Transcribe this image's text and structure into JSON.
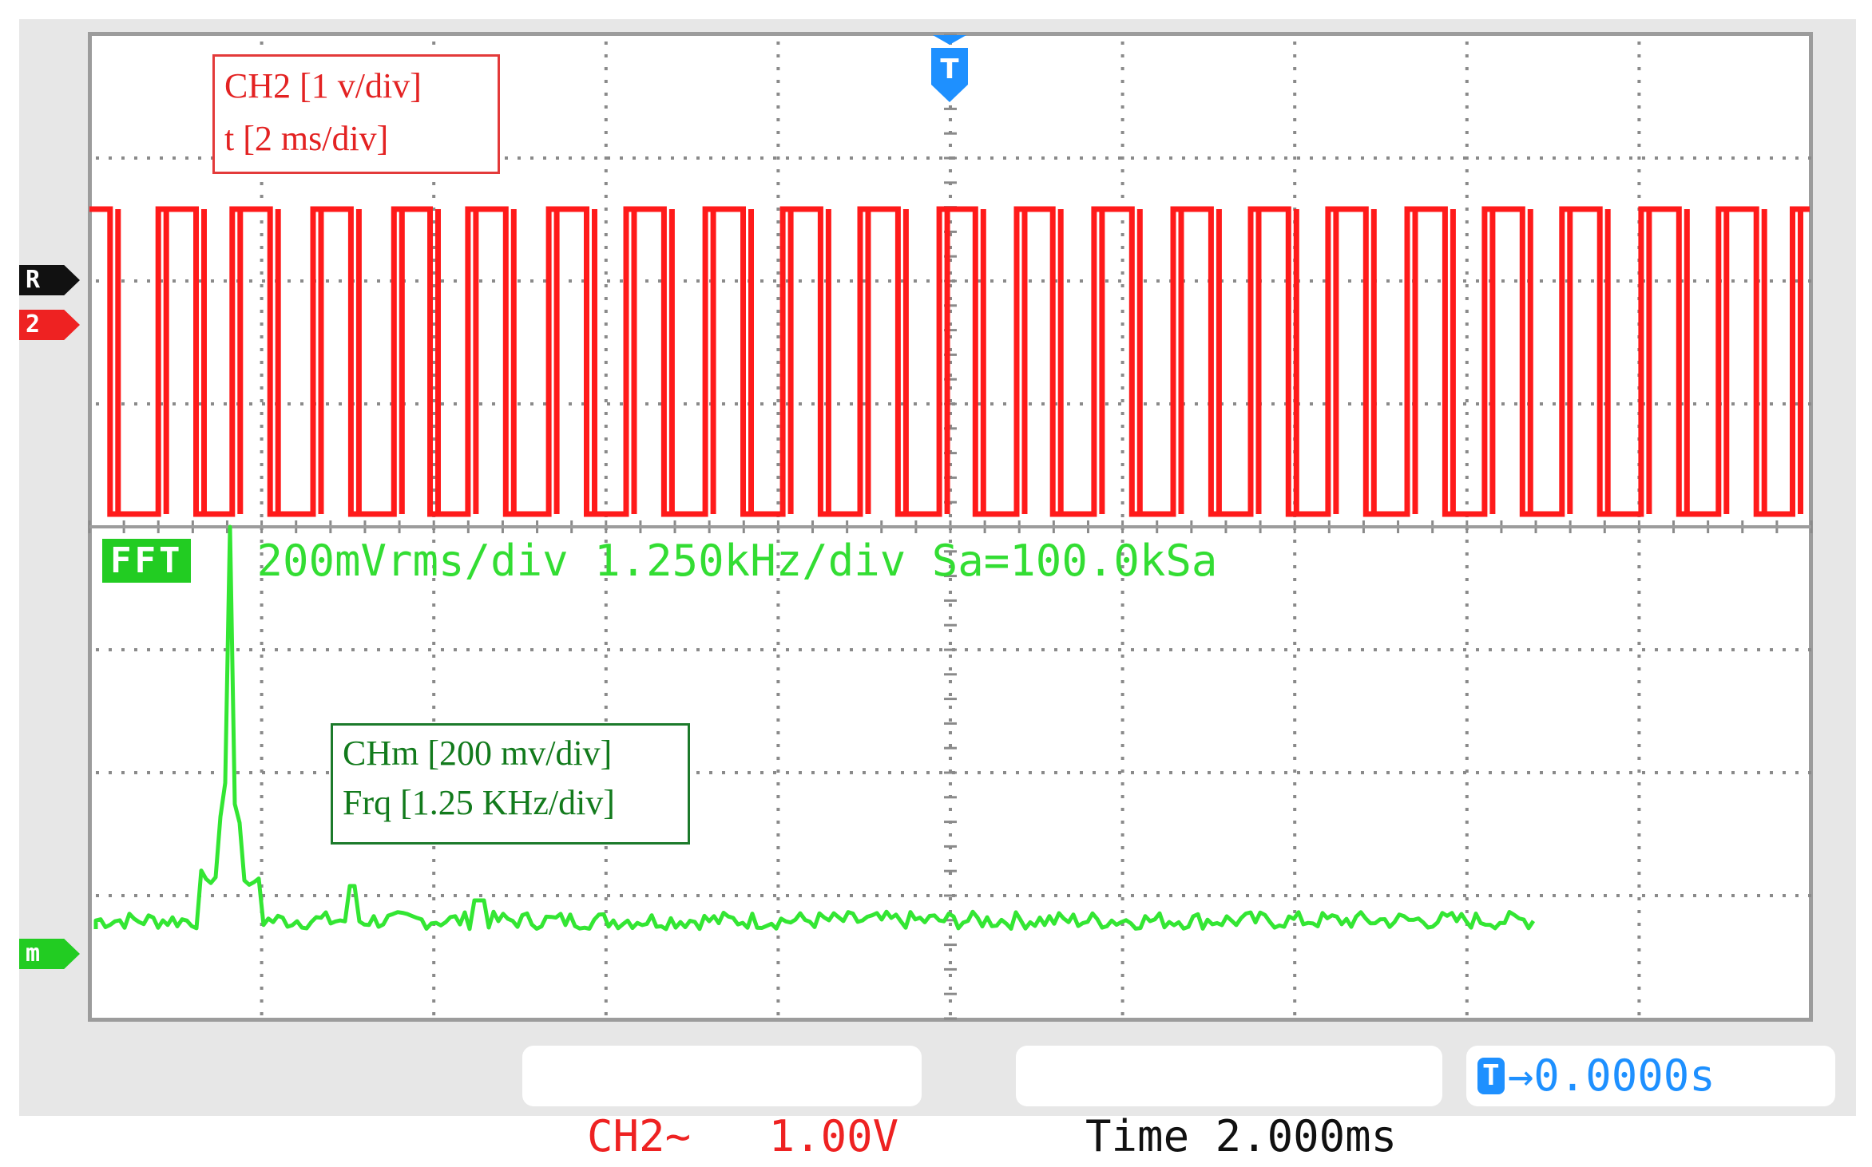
{
  "annotations": {
    "ch2_scale": "CH2 [1 v/div]",
    "time_scale": "t [2 ms/div]",
    "math_scale": "CHm [200 mv/div]",
    "freq_scale": "Frq [1.25 KHz/div]"
  },
  "fft": {
    "badge": "FFT",
    "header": "200mVrms/div 1.250kHz/div Sa=100.0kSa"
  },
  "markers": {
    "ref": "R",
    "ch2": "2",
    "math": "m",
    "trigger": "T"
  },
  "status_bar": {
    "ch2_label": "CH2~",
    "ch2_value": "1.00V",
    "time_label": "Time",
    "time_value": "2.000ms",
    "trigger_chip": "T",
    "trigger_value": "→0.0000s"
  },
  "colors": {
    "ch2_trace": "#ff1a1a",
    "fft_trace": "#33e633",
    "grid_dots": "#8a8a8a",
    "trigger_blue": "#1e90ff"
  },
  "waveform": {
    "ch2_transitions_fraction": [
      0.012,
      0.04,
      0.062,
      0.083,
      0.105,
      0.13,
      0.152,
      0.177,
      0.198,
      0.22,
      0.242,
      0.267,
      0.289,
      0.312,
      0.334,
      0.358,
      0.38,
      0.403,
      0.425,
      0.448,
      0.47,
      0.494,
      0.515,
      0.539,
      0.56,
      0.584,
      0.606,
      0.63,
      0.652,
      0.675,
      0.697,
      0.72,
      0.742,
      0.766,
      0.788,
      0.811,
      0.833,
      0.856,
      0.878,
      0.902,
      0.924,
      0.947,
      0.969,
      0.99
    ],
    "fft_peak_fraction": 0.08
  }
}
